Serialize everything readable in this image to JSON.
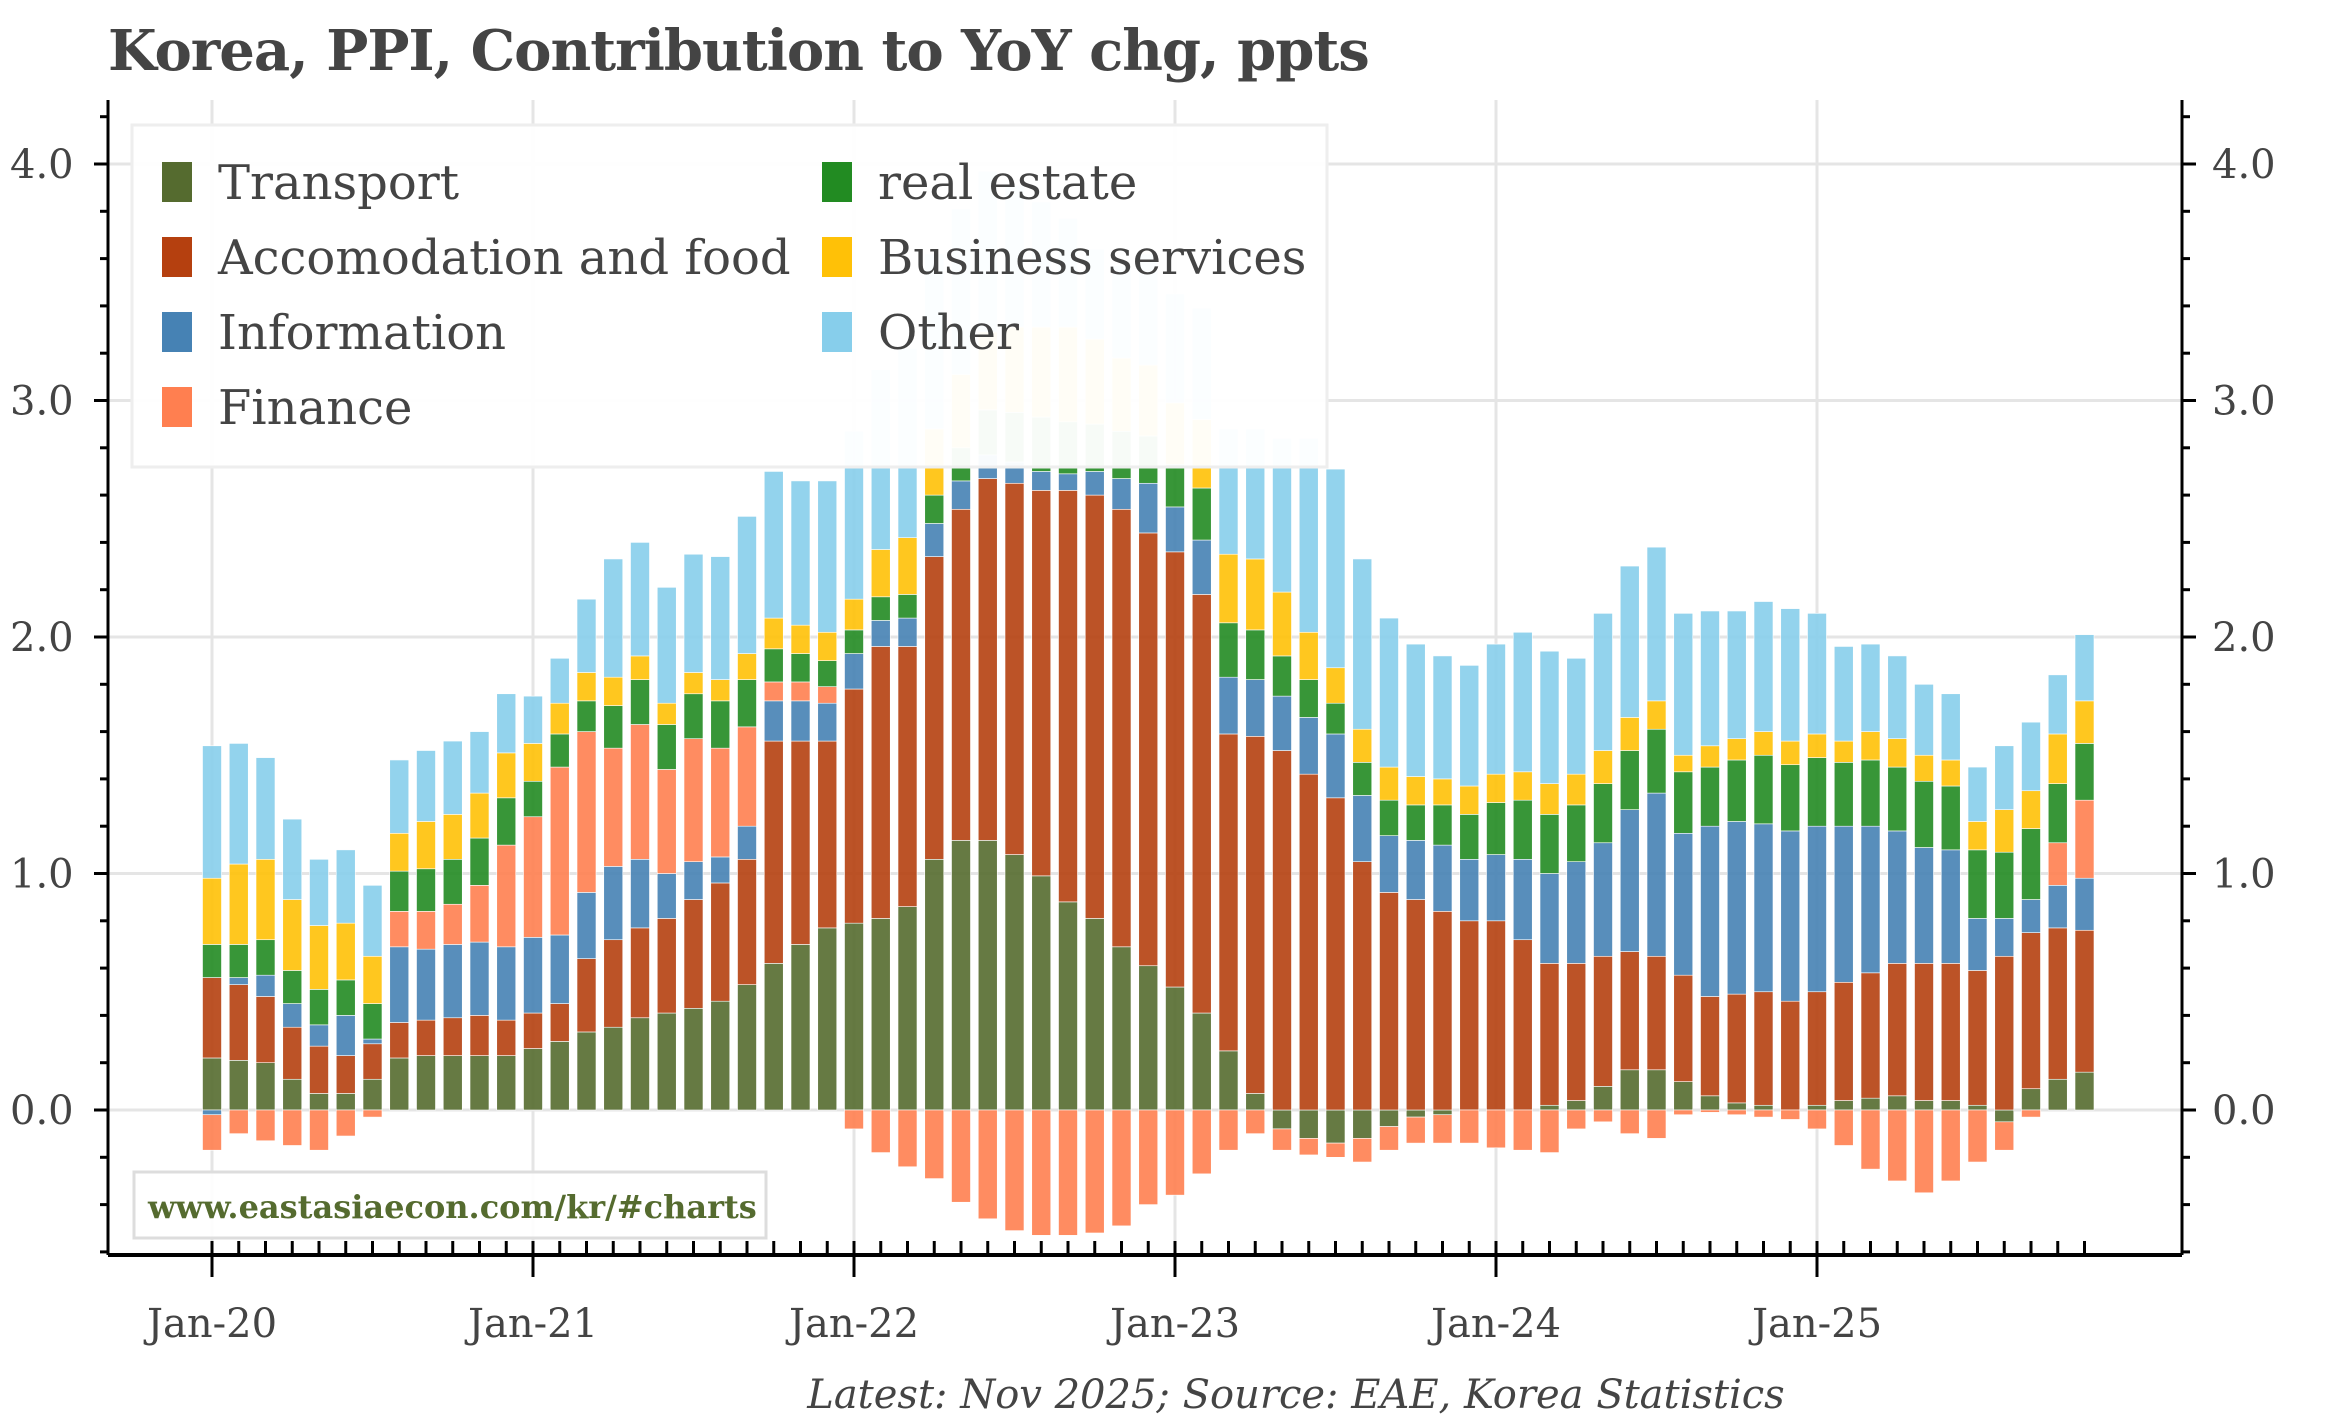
{
  "chart_data": {
    "type": "bar",
    "stacked": true,
    "title": "Korea, PPI, Contribution to YoY chg, ppts",
    "xlabel": "",
    "ylabel": "",
    "ylim": [
      -0.6,
      4.2
    ],
    "yticks": [
      0.0,
      1.0,
      2.0,
      3.0,
      4.0
    ],
    "ytick_labels": [
      "0.0",
      "1.0",
      "2.0",
      "3.0",
      "4.0"
    ],
    "xtick_labels": [
      "Jan-20",
      "Jan-21",
      "Jan-22",
      "Jan-23",
      "Jan-24",
      "Jan-25"
    ],
    "grid": true,
    "legend_position": "top-left",
    "start_month": "Jan-20",
    "end_month": "Nov-25",
    "n_months": 71,
    "series": [
      {
        "name": "Transport",
        "color": "#556b2f",
        "values": [
          0.22,
          0.21,
          0.2,
          0.13,
          0.07,
          0.07,
          0.13,
          0.22,
          0.23,
          0.23,
          0.23,
          0.23,
          0.26,
          0.29,
          0.33,
          0.35,
          0.39,
          0.41,
          0.43,
          0.46,
          0.53,
          0.62,
          0.7,
          0.77,
          0.79,
          0.81,
          0.86,
          1.06,
          1.14,
          1.14,
          1.08,
          0.99,
          0.88,
          0.81,
          0.69,
          0.61,
          0.52,
          0.41,
          0.25,
          0.07,
          -0.08,
          -0.12,
          -0.14,
          -0.12,
          -0.07,
          -0.03,
          -0.02,
          0.0,
          0.0,
          0.0,
          0.02,
          0.04,
          0.1,
          0.17,
          0.17,
          0.12,
          0.06,
          0.03,
          0.02,
          0.0,
          0.02,
          0.04,
          0.05,
          0.06,
          0.04,
          0.04,
          0.02,
          -0.05,
          0.09,
          0.13,
          0.16
        ]
      },
      {
        "name": "Accomodation and food",
        "color": "#b5400f",
        "values": [
          0.34,
          0.32,
          0.28,
          0.22,
          0.2,
          0.16,
          0.15,
          0.15,
          0.15,
          0.16,
          0.17,
          0.15,
          0.15,
          0.16,
          0.31,
          0.37,
          0.38,
          0.4,
          0.46,
          0.5,
          0.53,
          0.94,
          0.86,
          0.79,
          0.99,
          1.15,
          1.1,
          1.28,
          1.4,
          1.53,
          1.57,
          1.63,
          1.74,
          1.79,
          1.85,
          1.83,
          1.84,
          1.77,
          1.34,
          1.51,
          1.52,
          1.42,
          1.32,
          1.05,
          0.92,
          0.89,
          0.84,
          0.8,
          0.8,
          0.72,
          0.6,
          0.58,
          0.55,
          0.5,
          0.48,
          0.45,
          0.42,
          0.46,
          0.48,
          0.46,
          0.48,
          0.5,
          0.53,
          0.56,
          0.58,
          0.58,
          0.57,
          0.65,
          0.66,
          0.64,
          0.6
        ]
      },
      {
        "name": "Information",
        "color": "#4682b4",
        "values": [
          -0.02,
          0.03,
          0.09,
          0.1,
          0.09,
          0.17,
          0.02,
          0.32,
          0.3,
          0.31,
          0.31,
          0.31,
          0.32,
          0.29,
          0.28,
          0.31,
          0.29,
          0.19,
          0.16,
          0.11,
          0.14,
          0.17,
          0.17,
          0.16,
          0.15,
          0.11,
          0.12,
          0.14,
          0.12,
          0.1,
          0.09,
          0.08,
          0.07,
          0.1,
          0.13,
          0.21,
          0.19,
          0.23,
          0.24,
          0.24,
          0.23,
          0.24,
          0.27,
          0.28,
          0.24,
          0.25,
          0.28,
          0.26,
          0.28,
          0.34,
          0.38,
          0.43,
          0.48,
          0.6,
          0.69,
          0.6,
          0.72,
          0.73,
          0.71,
          0.72,
          0.7,
          0.66,
          0.62,
          0.56,
          0.49,
          0.48,
          0.22,
          0.16,
          0.14,
          0.18,
          0.22
        ]
      },
      {
        "name": "Finance",
        "color": "#ff7f50",
        "values": [
          -0.15,
          -0.1,
          -0.13,
          -0.15,
          -0.17,
          -0.11,
          -0.03,
          0.15,
          0.16,
          0.17,
          0.24,
          0.43,
          0.51,
          0.71,
          0.68,
          0.5,
          0.57,
          0.44,
          0.52,
          0.46,
          0.42,
          0.08,
          0.08,
          0.07,
          -0.08,
          -0.18,
          -0.24,
          -0.29,
          -0.39,
          -0.46,
          -0.51,
          -0.53,
          -0.53,
          -0.52,
          -0.49,
          -0.4,
          -0.36,
          -0.27,
          -0.17,
          -0.1,
          -0.09,
          -0.07,
          -0.06,
          -0.1,
          -0.1,
          -0.11,
          -0.12,
          -0.14,
          -0.16,
          -0.17,
          -0.18,
          -0.08,
          -0.05,
          -0.1,
          -0.12,
          -0.02,
          -0.01,
          -0.02,
          -0.03,
          -0.04,
          -0.08,
          -0.15,
          -0.25,
          -0.3,
          -0.35,
          -0.3,
          -0.22,
          -0.12,
          -0.03,
          0.18,
          0.33
        ]
      },
      {
        "name": "real estate",
        "color": "#228b22",
        "values": [
          0.14,
          0.14,
          0.15,
          0.14,
          0.15,
          0.15,
          0.15,
          0.17,
          0.18,
          0.19,
          0.2,
          0.2,
          0.15,
          0.14,
          0.13,
          0.18,
          0.19,
          0.19,
          0.19,
          0.2,
          0.2,
          0.14,
          0.12,
          0.11,
          0.1,
          0.1,
          0.1,
          0.12,
          0.14,
          0.19,
          0.21,
          0.23,
          0.22,
          0.2,
          0.2,
          0.2,
          0.18,
          0.22,
          0.23,
          0.21,
          0.17,
          0.16,
          0.13,
          0.14,
          0.15,
          0.15,
          0.17,
          0.19,
          0.22,
          0.25,
          0.25,
          0.24,
          0.25,
          0.25,
          0.27,
          0.26,
          0.25,
          0.26,
          0.29,
          0.28,
          0.29,
          0.27,
          0.28,
          0.27,
          0.28,
          0.27,
          0.29,
          0.28,
          0.3,
          0.25,
          0.24
        ]
      },
      {
        "name": "Business services",
        "color": "#ffc107",
        "values": [
          0.28,
          0.34,
          0.34,
          0.3,
          0.27,
          0.24,
          0.2,
          0.16,
          0.2,
          0.19,
          0.19,
          0.19,
          0.16,
          0.13,
          0.12,
          0.12,
          0.1,
          0.09,
          0.09,
          0.09,
          0.11,
          0.13,
          0.12,
          0.12,
          0.13,
          0.2,
          0.24,
          0.28,
          0.31,
          0.33,
          0.36,
          0.38,
          0.4,
          0.36,
          0.31,
          0.3,
          0.26,
          0.29,
          0.29,
          0.3,
          0.27,
          0.2,
          0.15,
          0.14,
          0.14,
          0.12,
          0.11,
          0.12,
          0.12,
          0.12,
          0.13,
          0.13,
          0.14,
          0.14,
          0.12,
          0.07,
          0.09,
          0.09,
          0.1,
          0.1,
          0.1,
          0.09,
          0.12,
          0.12,
          0.11,
          0.11,
          0.12,
          0.18,
          0.16,
          0.21,
          0.18
        ]
      },
      {
        "name": "Other",
        "color": "#87ceeb",
        "values": [
          0.56,
          0.51,
          0.43,
          0.34,
          0.28,
          0.31,
          0.3,
          0.31,
          0.3,
          0.31,
          0.26,
          0.25,
          0.2,
          0.19,
          0.31,
          0.5,
          0.48,
          0.49,
          0.5,
          0.52,
          0.58,
          0.62,
          0.61,
          0.64,
          0.71,
          0.76,
          0.8,
          0.74,
          0.7,
          0.68,
          0.6,
          0.53,
          0.46,
          0.38,
          0.39,
          0.47,
          0.46,
          0.47,
          0.53,
          0.55,
          0.65,
          0.82,
          0.84,
          0.72,
          0.63,
          0.56,
          0.52,
          0.51,
          0.55,
          0.59,
          0.56,
          0.49,
          0.58,
          0.64,
          0.65,
          0.6,
          0.57,
          0.54,
          0.55,
          0.56,
          0.51,
          0.4,
          0.37,
          0.35,
          0.3,
          0.28,
          0.23,
          0.27,
          0.29,
          0.25,
          0.28
        ]
      }
    ]
  },
  "watermark": "www.eastasiaecon.com/kr/#charts",
  "footnote": "Latest: Nov 2025; Source: EAE, Korea Statistics"
}
